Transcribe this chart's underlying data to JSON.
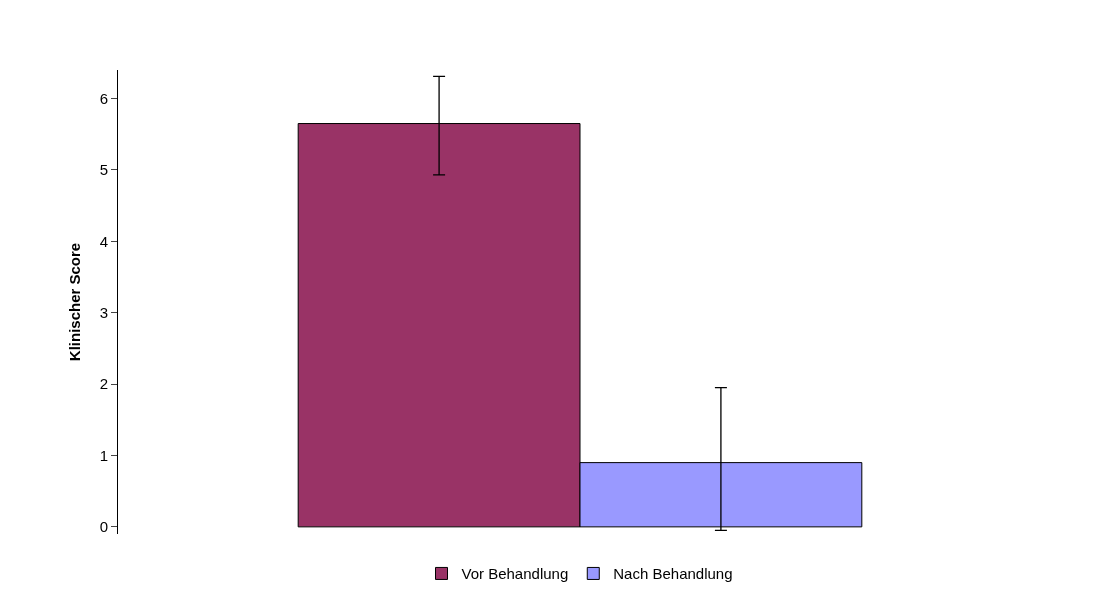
{
  "chart_data": {
    "type": "bar",
    "ylabel": "Klinischer Score",
    "categories": [
      null
    ],
    "series": [
      {
        "name": "Vor Behandlung",
        "color": "#993366",
        "values": [
          5.65
        ],
        "errors": [
          [
            4.93,
            6.31
          ]
        ]
      },
      {
        "name": "Nach Behandlung",
        "color": "#9999ff",
        "values": [
          0.9
        ],
        "errors": [
          [
            -0.05,
            1.95
          ]
        ]
      }
    ],
    "ylim": [
      -0.1,
      6.4
    ],
    "yticks": [
      0,
      1,
      2,
      3,
      4,
      5,
      6
    ],
    "legend": "bottom"
  }
}
